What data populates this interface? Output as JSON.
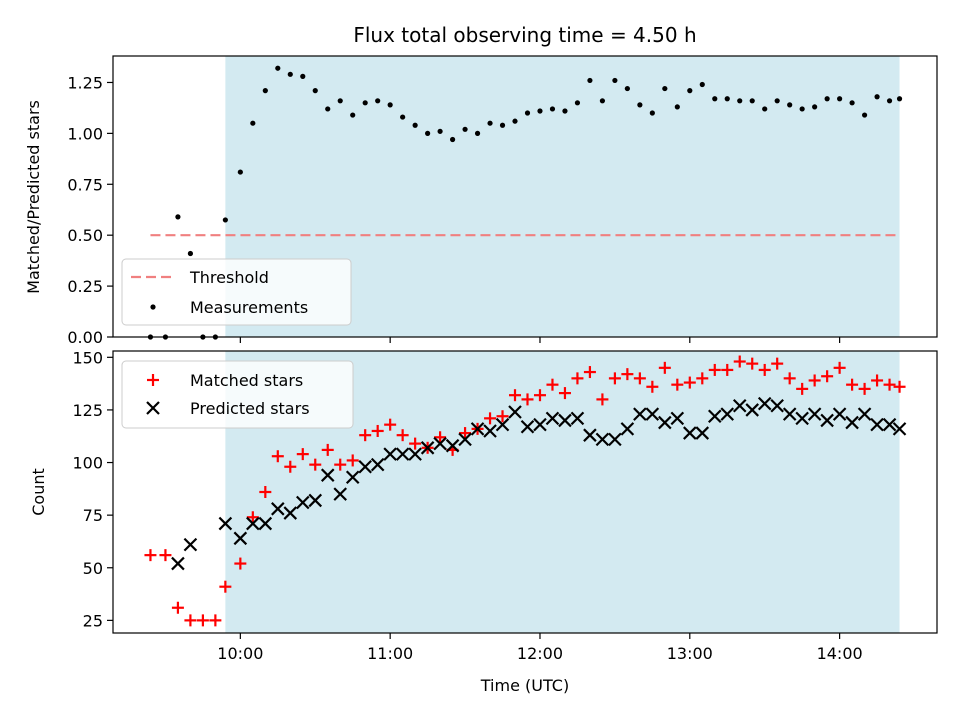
{
  "chart_data": [
    {
      "type": "scatter",
      "title": "Flux total observing time = 4.50 h",
      "ylabel": "Matched/Predicted stars",
      "xlabel": "",
      "ylim": [
        0,
        1.38
      ],
      "yticks": [
        "0.00",
        "0.25",
        "0.50",
        "0.75",
        "1.00",
        "1.25"
      ],
      "ytick_values": [
        0,
        0.25,
        0.5,
        0.75,
        1.0,
        1.25
      ],
      "xlim_hours": [
        9.15,
        14.65
      ],
      "shaded_window_hours": [
        9.9,
        14.4
      ],
      "threshold": {
        "name": "Threshold",
        "value": 0.5,
        "x_start": 9.4,
        "x_end": 14.4,
        "color": "#f08080"
      },
      "legend": {
        "placement": "lower-left",
        "entries": [
          "Threshold",
          "Measurements"
        ]
      },
      "series": [
        {
          "name": "Measurements",
          "color": "#000000",
          "x": [
            9.4,
            9.5,
            9.5833,
            9.6667,
            9.75,
            9.8333,
            9.9,
            10.0,
            10.0833,
            10.1667,
            10.25,
            10.3333,
            10.4167,
            10.5,
            10.5833,
            10.6667,
            10.75,
            10.8333,
            10.9167,
            11.0,
            11.0833,
            11.1667,
            11.25,
            11.3333,
            11.4167,
            11.5,
            11.5833,
            11.6667,
            11.75,
            11.8333,
            11.9167,
            12.0,
            12.0833,
            12.1667,
            12.25,
            12.3333,
            12.4167,
            12.5,
            12.5833,
            12.6667,
            12.75,
            12.8333,
            12.9167,
            13.0,
            13.0833,
            13.1667,
            13.25,
            13.3333,
            13.4167,
            13.5,
            13.5833,
            13.6667,
            13.75,
            13.8333,
            13.9167,
            14.0,
            14.0833,
            14.1667,
            14.25,
            14.3333,
            14.4
          ],
          "y": [
            0.0,
            0.0,
            0.59,
            0.41,
            0.0,
            0.0,
            0.575,
            0.81,
            1.05,
            1.21,
            1.32,
            1.29,
            1.28,
            1.21,
            1.12,
            1.16,
            1.09,
            1.15,
            1.16,
            1.14,
            1.08,
            1.04,
            1.0,
            1.01,
            0.97,
            1.02,
            1.0,
            1.05,
            1.04,
            1.06,
            1.1,
            1.11,
            1.12,
            1.11,
            1.15,
            1.26,
            1.16,
            1.26,
            1.22,
            1.14,
            1.1,
            1.22,
            1.13,
            1.21,
            1.24,
            1.17,
            1.17,
            1.16,
            1.16,
            1.12,
            1.16,
            1.14,
            1.12,
            1.13,
            1.17,
            1.17,
            1.15,
            1.09,
            1.18,
            1.16,
            1.17
          ]
        }
      ]
    },
    {
      "type": "scatter",
      "title": "",
      "ylabel": "Count",
      "xlabel": "Time (UTC)",
      "ylim": [
        19,
        153
      ],
      "yticks": [
        "25",
        "50",
        "75",
        "100",
        "125",
        "150"
      ],
      "ytick_values": [
        25,
        50,
        75,
        100,
        125,
        150
      ],
      "xlim_hours": [
        9.15,
        14.65
      ],
      "xticks": [
        "10:00",
        "11:00",
        "12:00",
        "13:00",
        "14:00"
      ],
      "xtick_values": [
        10,
        11,
        12,
        13,
        14
      ],
      "shaded_window_hours": [
        9.9,
        14.4
      ],
      "legend": {
        "placement": "upper-left",
        "entries": [
          "Matched stars",
          "Predicted stars"
        ]
      },
      "series": [
        {
          "name": "Matched stars",
          "color": "#ff0000",
          "marker": "plus",
          "x": [
            9.4,
            9.5,
            9.5833,
            9.6667,
            9.75,
            9.8333,
            9.9,
            10.0,
            10.0833,
            10.1667,
            10.25,
            10.3333,
            10.4167,
            10.5,
            10.5833,
            10.6667,
            10.75,
            10.8333,
            10.9167,
            11.0,
            11.0833,
            11.1667,
            11.25,
            11.3333,
            11.4167,
            11.5,
            11.5833,
            11.6667,
            11.75,
            11.8333,
            11.9167,
            12.0,
            12.0833,
            12.1667,
            12.25,
            12.3333,
            12.4167,
            12.5,
            12.5833,
            12.6667,
            12.75,
            12.8333,
            12.9167,
            13.0,
            13.0833,
            13.1667,
            13.25,
            13.3333,
            13.4167,
            13.5,
            13.5833,
            13.6667,
            13.75,
            13.8333,
            13.9167,
            14.0,
            14.0833,
            14.1667,
            14.25,
            14.3333,
            14.4
          ],
          "y": [
            56,
            56,
            31,
            25,
            25,
            25,
            41,
            52,
            74,
            86,
            103,
            98,
            104,
            99,
            106,
            99,
            101,
            113,
            115,
            118,
            113,
            109,
            107,
            112,
            106,
            114,
            116,
            121,
            122,
            132,
            130,
            132,
            137,
            133,
            140,
            143,
            130,
            140,
            142,
            140,
            136,
            145,
            137,
            138,
            140,
            144,
            144,
            148,
            147,
            144,
            147,
            140,
            135,
            139,
            141,
            145,
            137,
            135,
            139,
            137,
            136
          ]
        },
        {
          "name": "Predicted stars",
          "color": "#000000",
          "marker": "cross",
          "x": [
            9.5833,
            9.6667,
            9.9,
            10.0,
            10.0833,
            10.1667,
            10.25,
            10.3333,
            10.4167,
            10.5,
            10.5833,
            10.6667,
            10.75,
            10.8333,
            10.9167,
            11.0,
            11.0833,
            11.1667,
            11.25,
            11.3333,
            11.4167,
            11.5,
            11.5833,
            11.6667,
            11.75,
            11.8333,
            11.9167,
            12.0,
            12.0833,
            12.1667,
            12.25,
            12.3333,
            12.4167,
            12.5,
            12.5833,
            12.6667,
            12.75,
            12.8333,
            12.9167,
            13.0,
            13.0833,
            13.1667,
            13.25,
            13.3333,
            13.4167,
            13.5,
            13.5833,
            13.6667,
            13.75,
            13.8333,
            13.9167,
            14.0,
            14.0833,
            14.1667,
            14.25,
            14.3333,
            14.4
          ],
          "y": [
            52,
            61,
            71,
            64,
            71,
            71,
            78,
            76,
            81,
            82,
            94,
            85,
            93,
            98,
            99,
            104,
            104,
            104,
            107,
            109,
            108,
            111,
            116,
            115,
            118,
            124,
            117,
            118,
            121,
            120,
            121,
            113,
            111,
            111,
            116,
            123,
            123,
            119,
            121,
            114,
            114,
            122,
            123,
            127,
            125,
            128,
            127,
            123,
            121,
            123,
            120,
            123,
            119,
            123,
            118,
            118,
            116
          ]
        }
      ]
    }
  ]
}
